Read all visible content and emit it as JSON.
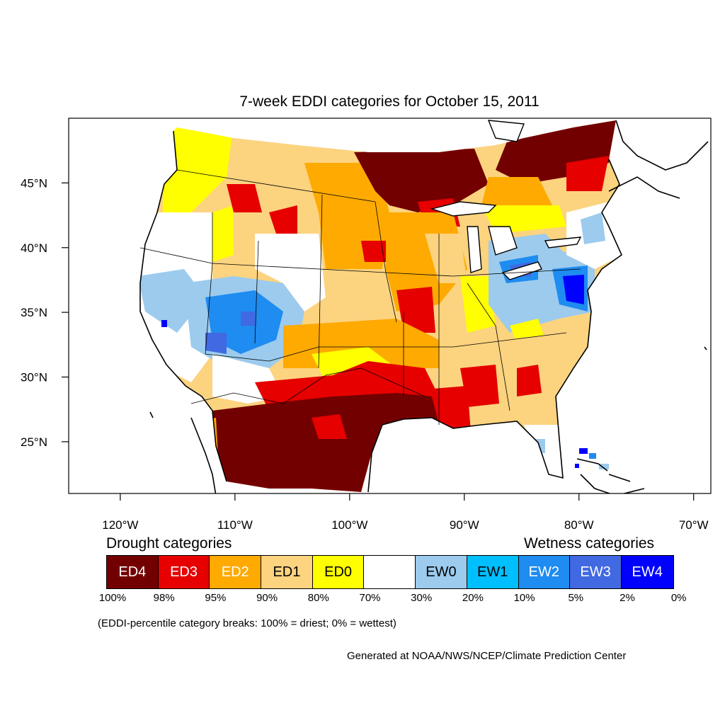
{
  "title": "7-week EDDI categories for October 15, 2011",
  "map": {
    "lon_range": [
      -124.5,
      -68.5
    ],
    "lat_range": [
      21,
      50
    ],
    "lon_ticks": [
      {
        "value": -120,
        "label": "120°W"
      },
      {
        "value": -110,
        "label": "110°W"
      },
      {
        "value": -100,
        "label": "100°W"
      },
      {
        "value": -90,
        "label": "90°W"
      },
      {
        "value": -80,
        "label": "80°W"
      },
      {
        "value": -70,
        "label": "70°W"
      }
    ],
    "lat_ticks": [
      {
        "value": 45,
        "label": "45°N"
      },
      {
        "value": 40,
        "label": "40°N"
      },
      {
        "value": 35,
        "label": "35°N"
      },
      {
        "value": 30,
        "label": "30°N"
      },
      {
        "value": 25,
        "label": "25°N"
      }
    ]
  },
  "legend": {
    "drought_heading": "Drought categories",
    "wetness_heading": "Wetness categories",
    "categories": [
      {
        "label": "ED4",
        "color": "#730000",
        "text_color": "#ffffff"
      },
      {
        "label": "ED3",
        "color": "#e60000",
        "text_color": "#ffffff"
      },
      {
        "label": "ED2",
        "color": "#ffaa00",
        "text_color": "#ffffff"
      },
      {
        "label": "ED1",
        "color": "#fcd37f",
        "text_color": "#000000"
      },
      {
        "label": "ED0",
        "color": "#ffff00",
        "text_color": "#000000"
      },
      {
        "label": "",
        "color": "#ffffff",
        "text_color": "#000000"
      },
      {
        "label": "EW0",
        "color": "#9ccbee",
        "text_color": "#000000"
      },
      {
        "label": "EW1",
        "color": "#00bfff",
        "text_color": "#000000"
      },
      {
        "label": "EW2",
        "color": "#1e8cf0",
        "text_color": "#ffffff"
      },
      {
        "label": "EW3",
        "color": "#4169e1",
        "text_color": "#ffffff"
      },
      {
        "label": "EW4",
        "color": "#0000ff",
        "text_color": "#ffffff"
      }
    ],
    "breaks": [
      "100%",
      "98%",
      "95%",
      "90%",
      "80%",
      "70%",
      "30%",
      "20%",
      "10%",
      "5%",
      "2%",
      "0%"
    ]
  },
  "note": "(EDDI-percentile category breaks: 100% = driest; 0% = wettest)",
  "credit": "Generated at NOAA/NWS/NCEP/Climate Prediction Center"
}
